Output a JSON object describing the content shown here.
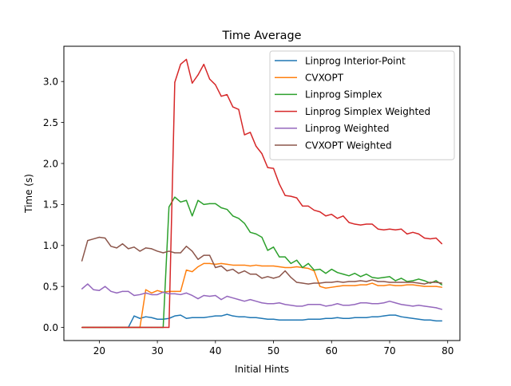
{
  "chart_data": {
    "type": "line",
    "title": "Time Average",
    "xlabel": "Initial Hints",
    "ylabel": "Time (s)",
    "xlim": [
      13.9,
      82.1
    ],
    "ylim": [
      -0.16,
      3.43
    ],
    "xticks": [
      20,
      30,
      40,
      50,
      60,
      70,
      80
    ],
    "yticks": [
      0.0,
      0.5,
      1.0,
      1.5,
      2.0,
      2.5,
      3.0
    ],
    "xtick_labels": [
      "20",
      "30",
      "40",
      "50",
      "60",
      "70",
      "80"
    ],
    "ytick_labels": [
      "0.0",
      "0.5",
      "1.0",
      "1.5",
      "2.0",
      "2.5",
      "3.0"
    ],
    "grid": false,
    "legend_position": "top-right",
    "x": [
      17,
      18,
      19,
      20,
      21,
      22,
      23,
      24,
      25,
      26,
      27,
      28,
      29,
      30,
      31,
      32,
      33,
      34,
      35,
      36,
      37,
      38,
      39,
      40,
      41,
      42,
      43,
      44,
      45,
      46,
      47,
      48,
      49,
      50,
      51,
      52,
      53,
      54,
      55,
      56,
      57,
      58,
      59,
      60,
      61,
      62,
      63,
      64,
      65,
      66,
      67,
      68,
      69,
      70,
      71,
      72,
      73,
      74,
      75,
      76,
      77,
      78,
      79
    ],
    "series": [
      {
        "name": "Linprog Interior-Point",
        "color": "#1f77b4",
        "values": [
          0,
          0,
          0,
          0,
          0,
          0,
          0,
          0,
          0,
          0.14,
          0.11,
          0.13,
          0.12,
          0.1,
          0.1,
          0.11,
          0.14,
          0.15,
          0.11,
          0.12,
          0.12,
          0.12,
          0.13,
          0.14,
          0.14,
          0.16,
          0.14,
          0.13,
          0.13,
          0.12,
          0.12,
          0.11,
          0.1,
          0.1,
          0.09,
          0.09,
          0.09,
          0.09,
          0.09,
          0.1,
          0.1,
          0.1,
          0.11,
          0.11,
          0.12,
          0.11,
          0.11,
          0.12,
          0.12,
          0.12,
          0.13,
          0.13,
          0.14,
          0.15,
          0.15,
          0.13,
          0.12,
          0.11,
          0.1,
          0.09,
          0.09,
          0.08,
          0.08
        ]
      },
      {
        "name": "CVXOPT",
        "color": "#ff7f0e",
        "values": [
          0,
          0,
          0,
          0,
          0,
          0,
          0,
          0,
          0,
          0,
          0,
          0.46,
          0.42,
          0.45,
          0.43,
          0.44,
          0.44,
          0.44,
          0.7,
          0.68,
          0.74,
          0.78,
          0.78,
          0.77,
          0.78,
          0.77,
          0.76,
          0.76,
          0.76,
          0.75,
          0.76,
          0.75,
          0.75,
          0.75,
          0.74,
          0.73,
          0.73,
          0.74,
          0.73,
          0.72,
          0.69,
          0.5,
          0.48,
          0.49,
          0.5,
          0.51,
          0.51,
          0.51,
          0.52,
          0.52,
          0.54,
          0.51,
          0.51,
          0.52,
          0.51,
          0.51,
          0.52,
          0.52,
          0.51,
          0.5,
          0.5,
          0.5,
          0.49
        ]
      },
      {
        "name": "Linprog Simplex",
        "color": "#2ca02c",
        "values": [
          0,
          0,
          0,
          0,
          0,
          0,
          0,
          0,
          0,
          0,
          0,
          0,
          0,
          0,
          0,
          1.47,
          1.59,
          1.53,
          1.55,
          1.36,
          1.55,
          1.5,
          1.51,
          1.51,
          1.46,
          1.44,
          1.36,
          1.33,
          1.27,
          1.16,
          1.14,
          1.1,
          0.94,
          0.98,
          0.86,
          0.86,
          0.78,
          0.82,
          0.73,
          0.78,
          0.7,
          0.71,
          0.66,
          0.71,
          0.67,
          0.65,
          0.63,
          0.66,
          0.62,
          0.65,
          0.61,
          0.6,
          0.61,
          0.62,
          0.57,
          0.6,
          0.56,
          0.57,
          0.59,
          0.57,
          0.54,
          0.57,
          0.52
        ]
      },
      {
        "name": "Linprog Simplex Weighted",
        "color": "#d62728",
        "values": [
          0,
          0,
          0,
          0,
          0,
          0,
          0,
          0,
          0,
          0,
          0,
          0,
          0,
          0,
          0,
          0,
          2.99,
          3.21,
          3.27,
          2.98,
          3.08,
          3.21,
          3.03,
          2.96,
          2.82,
          2.84,
          2.69,
          2.66,
          2.35,
          2.38,
          2.21,
          2.12,
          1.95,
          1.94,
          1.75,
          1.61,
          1.6,
          1.58,
          1.48,
          1.48,
          1.43,
          1.41,
          1.36,
          1.38,
          1.33,
          1.36,
          1.28,
          1.26,
          1.25,
          1.26,
          1.26,
          1.2,
          1.19,
          1.2,
          1.19,
          1.2,
          1.14,
          1.16,
          1.14,
          1.09,
          1.08,
          1.09,
          1.02
        ]
      },
      {
        "name": "Linprog Weighted",
        "color": "#9467bd",
        "values": [
          0.47,
          0.53,
          0.46,
          0.45,
          0.5,
          0.44,
          0.42,
          0.44,
          0.44,
          0.39,
          0.4,
          0.42,
          0.4,
          0.4,
          0.43,
          0.41,
          0.41,
          0.4,
          0.42,
          0.39,
          0.35,
          0.39,
          0.38,
          0.39,
          0.34,
          0.38,
          0.36,
          0.34,
          0.32,
          0.34,
          0.32,
          0.3,
          0.29,
          0.29,
          0.3,
          0.28,
          0.27,
          0.26,
          0.26,
          0.28,
          0.28,
          0.28,
          0.26,
          0.27,
          0.29,
          0.27,
          0.27,
          0.28,
          0.3,
          0.3,
          0.29,
          0.29,
          0.3,
          0.32,
          0.3,
          0.28,
          0.27,
          0.26,
          0.27,
          0.26,
          0.25,
          0.24,
          0.22
        ]
      },
      {
        "name": "CVXOPT Weighted",
        "color": "#8c564b",
        "values": [
          0.81,
          1.06,
          1.08,
          1.1,
          1.09,
          0.99,
          0.97,
          1.02,
          0.96,
          0.98,
          0.93,
          0.97,
          0.96,
          0.93,
          0.91,
          0.93,
          0.91,
          0.91,
          0.99,
          0.93,
          0.83,
          0.88,
          0.88,
          0.73,
          0.75,
          0.69,
          0.71,
          0.66,
          0.69,
          0.65,
          0.65,
          0.6,
          0.62,
          0.6,
          0.62,
          0.69,
          0.61,
          0.55,
          0.54,
          0.53,
          0.54,
          0.54,
          0.55,
          0.55,
          0.56,
          0.55,
          0.56,
          0.56,
          0.57,
          0.56,
          0.58,
          0.56,
          0.56,
          0.55,
          0.55,
          0.55,
          0.55,
          0.55,
          0.54,
          0.53,
          0.55,
          0.55,
          0.54
        ]
      }
    ]
  }
}
